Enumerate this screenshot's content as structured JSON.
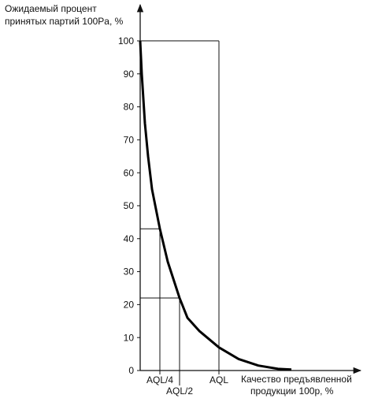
{
  "chart_data": {
    "type": "line",
    "ylabel": [
      "Ожидаемый процент",
      "принятых партий 100Pa, %"
    ],
    "xlabel": [
      "Качество предъявленной",
      "продукции 100p, %"
    ],
    "x": [
      0,
      0.02,
      0.06,
      0.1,
      0.15,
      0.25,
      0.35,
      0.5,
      0.6,
      0.75,
      1.0,
      1.25,
      1.5,
      1.75,
      1.92
    ],
    "series": [
      {
        "color": "#000000",
        "values": [
          100,
          90,
          75,
          65,
          55,
          43,
          33,
          22,
          16,
          12,
          7,
          3.5,
          1.5,
          0.5,
          0.3
        ]
      }
    ],
    "xlim": [
      0,
      2.77
    ],
    "ylim": [
      0,
      110.5
    ],
    "xticks": [
      {
        "value": 0.25,
        "label": "AQL/4"
      },
      {
        "value": 0.5,
        "label": "AQL/2"
      },
      {
        "value": 1,
        "label": "AQL"
      }
    ],
    "yticks": [
      0,
      10,
      20,
      30,
      40,
      50,
      60,
      70,
      80,
      90,
      100
    ],
    "guides": [
      {
        "x": 0.25,
        "y": 43
      },
      {
        "x": 0.5,
        "y": 22
      },
      {
        "x": 1,
        "y": 100
      }
    ]
  }
}
